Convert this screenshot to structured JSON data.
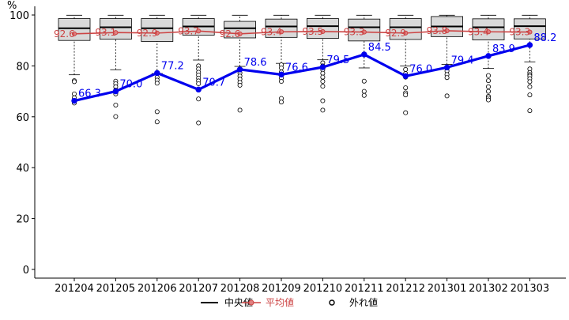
{
  "chart_data": {
    "type": "box",
    "y_unit": "%",
    "ylim": [
      0,
      100
    ],
    "y_ticks": [
      0,
      20,
      40,
      60,
      80,
      100
    ],
    "categories": [
      "201204",
      "201205",
      "201206",
      "201207",
      "201208",
      "201209",
      "201210",
      "201211",
      "201212",
      "201301",
      "201302",
      "201303"
    ],
    "boxes": [
      {
        "whisker_low": 76.5,
        "q1": 90.0,
        "median": 94.8,
        "q3": 98.6,
        "whisker_high": 99.9,
        "outliers": [
          74.2,
          73.8,
          69.0,
          67.5,
          66.2,
          65.4
        ]
      },
      {
        "whisker_low": 78.5,
        "q1": 90.5,
        "median": 95.2,
        "q3": 98.6,
        "whisker_high": 99.9,
        "outliers": [
          74.0,
          73.0,
          71.8,
          70.5,
          69.0,
          64.6,
          60.1
        ]
      },
      {
        "whisker_low": 77.0,
        "q1": 89.6,
        "median": 94.8,
        "q3": 98.6,
        "whisker_high": 99.9,
        "outliers": [
          75.5,
          74.4,
          73.2,
          62.0,
          58.0
        ]
      },
      {
        "whisker_low": 82.3,
        "q1": 92.1,
        "median": 95.5,
        "q3": 98.6,
        "whisker_high": 99.9,
        "outliers": [
          80.0,
          78.8,
          77.5,
          76.4,
          75.2,
          74.1,
          73.0,
          67.0,
          57.6
        ]
      },
      {
        "whisker_low": 79.8,
        "q1": 91.0,
        "median": 94.8,
        "q3": 97.5,
        "whisker_high": 99.9,
        "outliers": [
          77.2,
          76.0,
          74.8,
          73.5,
          72.4,
          62.6
        ]
      },
      {
        "whisker_low": 81.0,
        "q1": 91.2,
        "median": 95.5,
        "q3": 98.4,
        "whisker_high": 99.9,
        "outliers": [
          80.4,
          79.2,
          77.6,
          75.2,
          73.9,
          67.2,
          65.8
        ]
      },
      {
        "whisker_low": 82.4,
        "q1": 90.8,
        "median": 95.6,
        "q3": 98.6,
        "whisker_high": 99.9,
        "outliers": [
          81.2,
          80.0,
          78.5,
          77.1,
          75.6,
          73.9,
          72.0,
          66.3,
          62.6
        ]
      },
      {
        "whisker_low": 79.2,
        "q1": 89.8,
        "median": 95.2,
        "q3": 98.4,
        "whisker_high": 99.9,
        "outliers": [
          74.0,
          70.0,
          68.4
        ]
      },
      {
        "whisker_low": 80.0,
        "q1": 90.4,
        "median": 95.2,
        "q3": 98.6,
        "whisker_high": 99.9,
        "outliers": [
          78.6,
          77.0,
          75.6,
          71.4,
          69.4,
          68.6,
          61.6
        ]
      },
      {
        "whisker_low": 80.6,
        "q1": 91.5,
        "median": 95.5,
        "q3": 99.4,
        "whisker_high": 99.9,
        "outliers": [
          79.4,
          78.0,
          76.6,
          75.4,
          68.2
        ]
      },
      {
        "whisker_low": 79.0,
        "q1": 90.2,
        "median": 95.2,
        "q3": 98.5,
        "whisker_high": 99.9,
        "outliers": [
          76.2,
          74.2,
          71.8,
          70.0,
          68.0,
          67.4,
          66.6
        ]
      },
      {
        "whisker_low": 81.6,
        "q1": 90.6,
        "median": 95.6,
        "q3": 98.5,
        "whisker_high": 99.9,
        "outliers": [
          78.8,
          77.4,
          76.6,
          76.0,
          75.0,
          73.8,
          71.8,
          68.6,
          62.4
        ]
      }
    ],
    "series": [
      {
        "name": "平均値",
        "color": "#cc4444",
        "values": [
          92.6,
          93.1,
          92.9,
          93.7,
          92.6,
          93.4,
          93.5,
          93.3,
          92.9,
          93.8,
          93.4,
          93.3
        ],
        "labels": [
          "92.6",
          "93.1",
          "92.9",
          "93.7",
          "92.6",
          "93.4",
          "93.5",
          "93.3",
          "92.9",
          "93.8",
          "93.4",
          "93.3"
        ]
      },
      {
        "name": "",
        "color": "#0000ee",
        "values": [
          66.3,
          70.0,
          77.2,
          70.7,
          78.6,
          76.6,
          79.5,
          84.5,
          76.0,
          79.4,
          83.9,
          88.2
        ],
        "labels": [
          "66.3",
          "70.0",
          "77.2",
          "70.7",
          "78.6",
          "76.6",
          "79.5",
          "84.5",
          "76.0",
          "79.4",
          "83.9",
          "88.2"
        ]
      }
    ],
    "legend": {
      "position": "bottom",
      "items": [
        {
          "label": "中央値",
          "color": "#000000"
        },
        {
          "label": "平均値",
          "color": "#cc4444"
        },
        {
          "label": "外れ値",
          "color": "#000000"
        }
      ]
    }
  }
}
